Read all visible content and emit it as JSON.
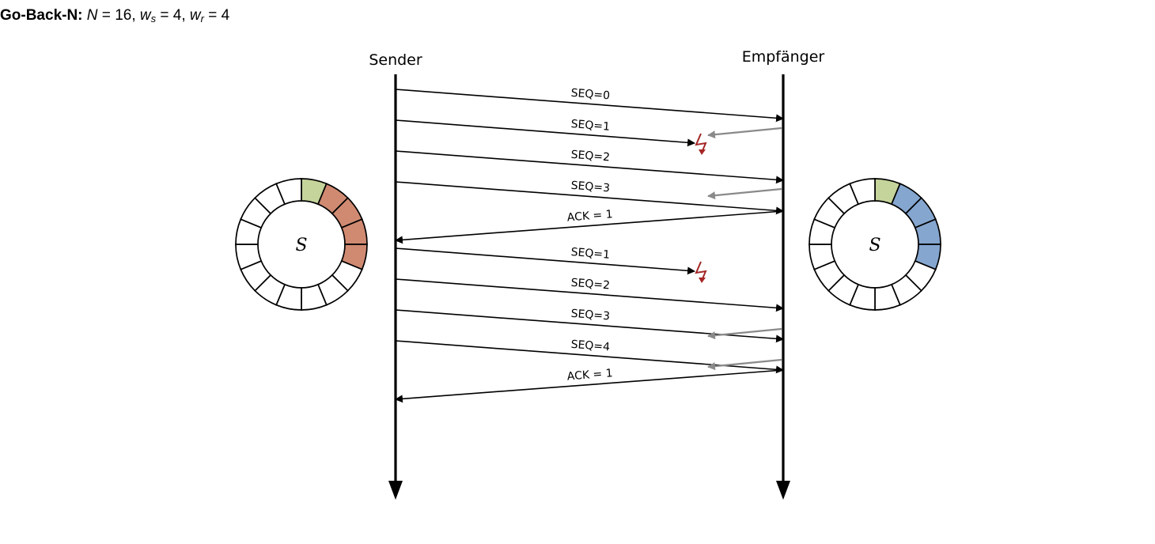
{
  "header": {
    "label": "Go-Back-N:",
    "n_symbol": "N",
    "n_value": "16",
    "ws_symbol": "w",
    "ws_sub": "s",
    "ws_value": "4",
    "wr_symbol": "w",
    "wr_sub": "r",
    "wr_value": "4"
  },
  "diagram": {
    "sender_label": "Sender",
    "receiver_label": "Empfänger",
    "ring_label": "S",
    "sequence_space": 16,
    "colors": {
      "acked": "#c5d49b",
      "sender_window": "#d08a72",
      "receiver_window": "#85a6cf",
      "empty": "#ffffff",
      "lost": "#a52626",
      "ack_gray": "#8a8a8a"
    },
    "sender_ring": {
      "acked": [
        0
      ],
      "window": [
        1,
        2,
        3,
        4
      ]
    },
    "receiver_ring": {
      "acked": [
        0
      ],
      "window": [
        1,
        2,
        3,
        4
      ]
    },
    "messages": [
      {
        "label": "SEQ=0",
        "direction": "to-receiver",
        "lost": false
      },
      {
        "label": "SEQ=1",
        "direction": "to-receiver",
        "lost": true
      },
      {
        "label": "SEQ=2",
        "direction": "to-receiver",
        "lost": false
      },
      {
        "label": "SEQ=3",
        "direction": "to-receiver",
        "lost": false
      },
      {
        "label": "ACK = 1",
        "direction": "to-sender",
        "lost": false
      },
      {
        "label": "SEQ=1",
        "direction": "to-receiver",
        "lost": true
      },
      {
        "label": "SEQ=2",
        "direction": "to-receiver",
        "lost": false
      },
      {
        "label": "SEQ=3",
        "direction": "to-receiver",
        "lost": false
      },
      {
        "label": "SEQ=4",
        "direction": "to-receiver",
        "lost": false
      },
      {
        "label": "ACK = 1",
        "direction": "to-sender",
        "lost": false
      }
    ],
    "dup_acks": 4
  }
}
